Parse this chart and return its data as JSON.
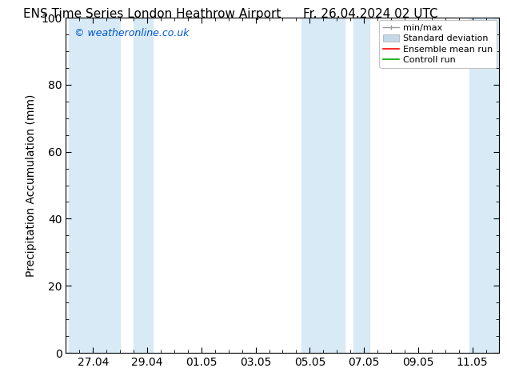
{
  "title_left": "ENS Time Series London Heathrow Airport",
  "title_right": "Fr. 26.04.2024 02 UTC",
  "ylabel": "Precipitation Accumulation (mm)",
  "ylim": [
    0,
    100
  ],
  "yticks": [
    0,
    20,
    40,
    60,
    80,
    100
  ],
  "background_color": "#ffffff",
  "plot_bg_color": "#ffffff",
  "watermark": "© weatheronline.co.uk",
  "watermark_color": "#0055cc",
  "x_tick_labels": [
    "27.04",
    "29.04",
    "01.05",
    "03.05",
    "05.05",
    "07.05",
    "09.05",
    "11.05"
  ],
  "x_tick_positions": [
    1,
    3,
    5,
    7,
    9,
    11,
    13,
    15
  ],
  "xlim": [
    0.0,
    16.0
  ],
  "shaded_regions": [
    [
      0.1,
      2.0
    ],
    [
      2.5,
      3.2
    ],
    [
      8.7,
      10.3
    ],
    [
      10.6,
      11.2
    ],
    [
      14.9,
      16.0
    ]
  ],
  "shaded_color": "#d8eaf5",
  "legend_labels": [
    "min/max",
    "Standard deviation",
    "Ensemble mean run",
    "Controll run"
  ],
  "legend_colors_line": [
    "#aaaaaa",
    "#c5d8ea",
    "#ff0000",
    "#00aa00"
  ],
  "font_size": 10,
  "title_font_size": 11
}
